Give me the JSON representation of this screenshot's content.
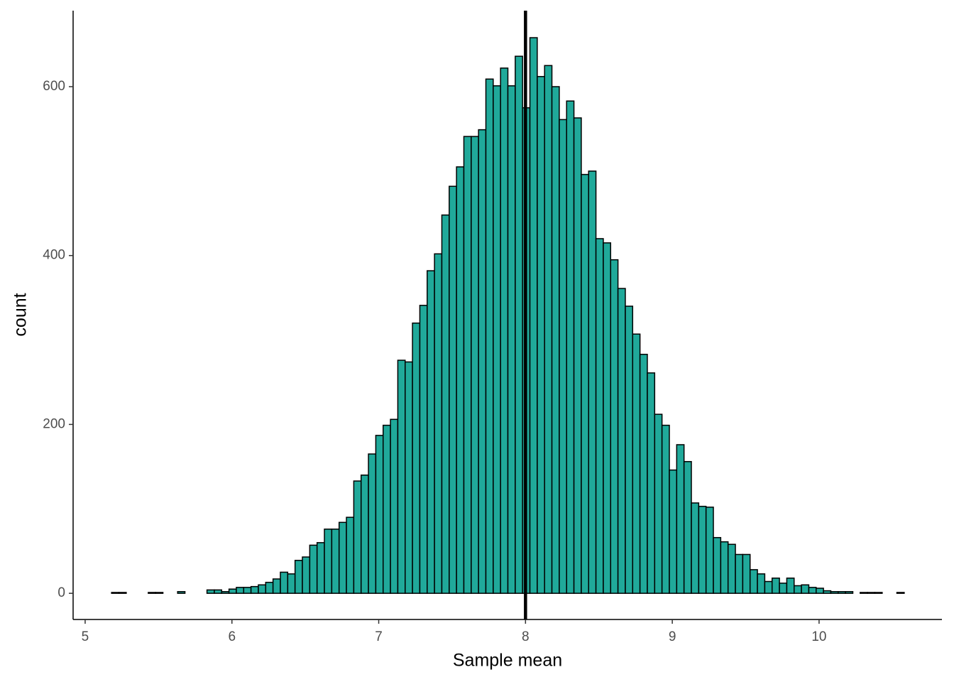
{
  "chart_data": {
    "type": "histogram",
    "xlabel": "Sample mean",
    "ylabel": "count",
    "bins": [
      5.18,
      5.23,
      5.28,
      5.33,
      5.38,
      5.43,
      5.48,
      5.53,
      5.58,
      5.63,
      5.68,
      5.73,
      5.78,
      5.83,
      5.88,
      5.93,
      5.98,
      6.03,
      6.08,
      6.13,
      6.18,
      6.23,
      6.28,
      6.33,
      6.38,
      6.43,
      6.48,
      6.53,
      6.58,
      6.63,
      6.68,
      6.73,
      6.78,
      6.83,
      6.88,
      6.93,
      6.98,
      7.03,
      7.08,
      7.13,
      7.18,
      7.23,
      7.28,
      7.33,
      7.38,
      7.43,
      7.48,
      7.53,
      7.58,
      7.63,
      7.68,
      7.73,
      7.78,
      7.83,
      7.88,
      7.93,
      7.98,
      8.03,
      8.08,
      8.13,
      8.18,
      8.23,
      8.28,
      8.33,
      8.38,
      8.43,
      8.48,
      8.53,
      8.58,
      8.63,
      8.68,
      8.73,
      8.78,
      8.83,
      8.88,
      8.93,
      8.98,
      9.03,
      9.08,
      9.13,
      9.18,
      9.23,
      9.28,
      9.33,
      9.38,
      9.43,
      9.48,
      9.53,
      9.58,
      9.63,
      9.68,
      9.73,
      9.78,
      9.83,
      9.88,
      9.93,
      9.98,
      10.03,
      10.08,
      10.13,
      10.18,
      10.23,
      10.28,
      10.33,
      10.38,
      10.43,
      10.48,
      10.53,
      10.58
    ],
    "values": [
      1,
      1,
      0,
      0,
      0,
      1,
      1,
      0,
      0,
      2,
      0,
      0,
      0,
      4,
      4,
      2,
      5,
      7,
      7,
      8,
      10,
      13,
      17,
      25,
      23,
      39,
      43,
      57,
      60,
      76,
      76,
      84,
      90,
      133,
      140,
      165,
      187,
      199,
      206,
      276,
      274,
      320,
      341,
      382,
      402,
      448,
      482,
      505,
      541,
      541,
      549,
      609,
      601,
      622,
      601,
      636,
      575,
      658,
      612,
      625,
      600,
      561,
      583,
      563,
      496,
      500,
      420,
      415,
      395,
      361,
      340,
      307,
      283,
      261,
      212,
      199,
      146,
      176,
      156,
      107,
      103,
      102,
      66,
      61,
      58,
      46,
      46,
      28,
      23,
      14,
      18,
      12,
      18,
      9,
      10,
      7,
      6,
      3,
      2,
      2,
      2,
      0,
      1,
      1,
      1,
      0,
      0,
      1
    ],
    "color": "#20a99a",
    "edgecolor": "#000000",
    "vline": 8,
    "xlim": [
      4.918,
      10.837
    ],
    "xticks": [
      5,
      6,
      7,
      8,
      9,
      10
    ],
    "ylim": [
      -31,
      690
    ],
    "yticks": [
      0,
      200,
      400,
      600
    ],
    "grid": false
  }
}
